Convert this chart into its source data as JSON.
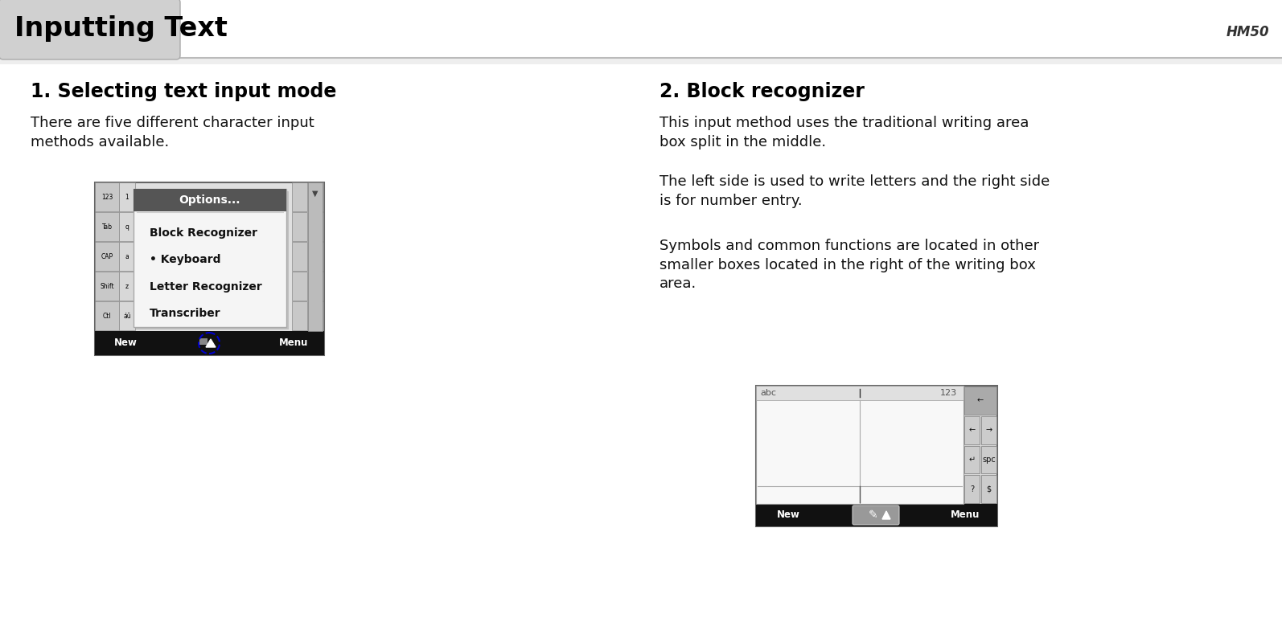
{
  "title": "Inputting Text",
  "hm50": "HM50",
  "bg_color": "#ffffff",
  "section1_heading": "1. Selecting text input mode",
  "section1_body1": "There are five different character input\nmethods available.",
  "section2_heading": "2. Block recognizer",
  "section2_body1": "This input method uses the traditional writing area\nbox split in the middle.",
  "section2_body2": "The left side is used to write letters and the right side\nis for number entry.",
  "section2_body3": "Symbols and common functions are located in other\nsmaller boxes located in the right of the writing box\narea.",
  "menu_items": [
    "Block Recognizer",
    "• Keyboard",
    "Letter Recognizer",
    "Transcriber"
  ],
  "options_text": "Options...",
  "taskbar_left": "New",
  "taskbar_right": "Menu",
  "key_col1": [
    "123",
    "Tab",
    "CAP",
    "Shift",
    "Ctl"
  ],
  "key_col2": [
    "1",
    "q",
    "a",
    "z",
    "áū"
  ]
}
